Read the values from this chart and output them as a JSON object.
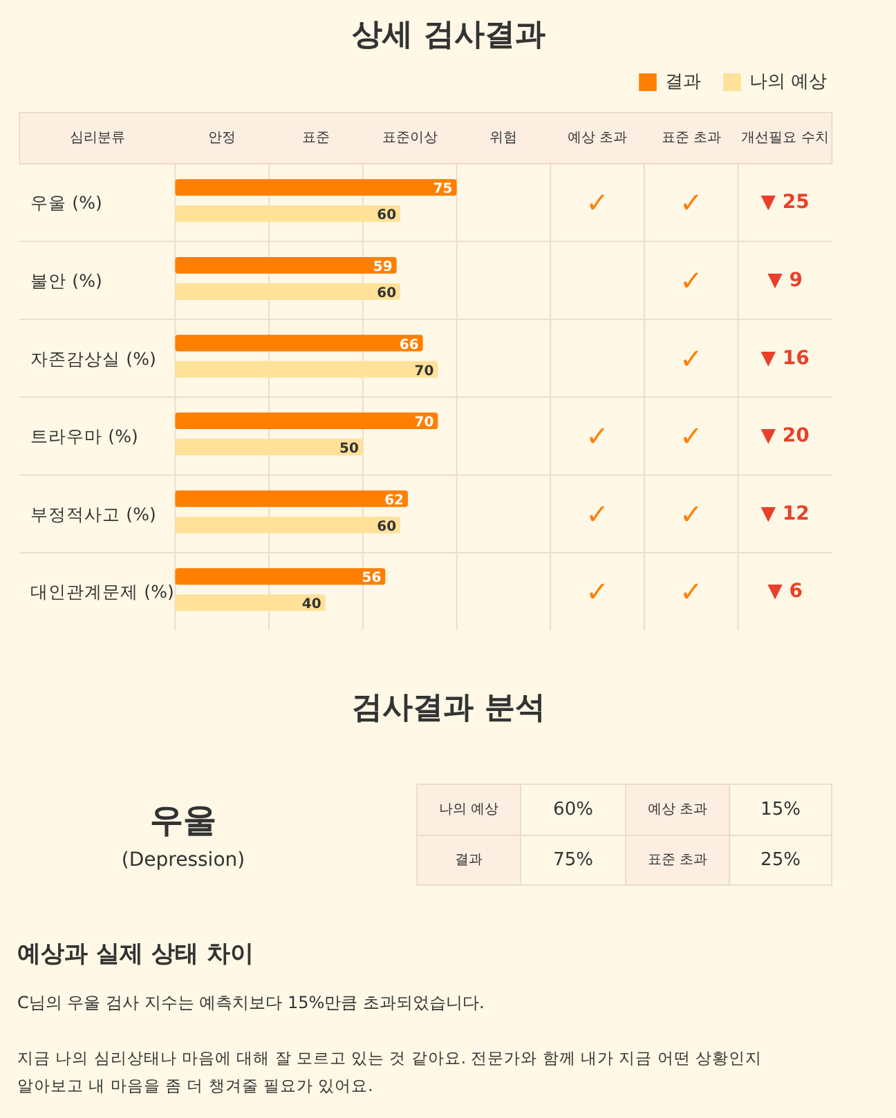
{
  "chart_data": {
    "type": "bar",
    "orientation": "horizontal",
    "title": "상세 검사결과",
    "categories": [
      "우울 (%)",
      "불안 (%)",
      "자존감상실 (%)",
      "트라우마 (%)",
      "부정적사고 (%)",
      "대인관계문제 (%)"
    ],
    "series": [
      {
        "name": "결과",
        "color": "#ff7f00",
        "values": [
          75,
          59,
          66,
          70,
          62,
          56
        ]
      },
      {
        "name": "나의 예상",
        "color": "#ffe199",
        "values": [
          60,
          60,
          70,
          50,
          60,
          40
        ]
      }
    ],
    "xlim": [
      0,
      100
    ],
    "tick_labels": false,
    "data_labels": true,
    "legend": "top right",
    "annotations": [
      "✓",
      "✓",
      "▼ 25",
      "✓",
      "▼ 9",
      "✓",
      "▼ 16",
      "✓",
      "✓",
      "▼ 20",
      "✓",
      "✓",
      "▼ 12",
      "✓",
      "✓",
      "▼ 6",
      "심리분류",
      "안정",
      "표준",
      "표준이상",
      "위험",
      "예상 초과",
      "표준 초과",
      "개선필요 수치",
      "검사결과 분석",
      "우울",
      "(Depression)",
      "나의 예상",
      "60%",
      "예상 초과",
      "15%",
      "결과",
      "75%",
      "표준 초과",
      "25%",
      "예상과 실제 상태 차이",
      "C님의 우울 검사 지수는 예측치보다 15%만큼 초과되었습니다.",
      "지금 나의 심리상태나 마음에 대해 잘 모르고 있는 것 같아요. 전문가와 함께 내가 지금 어떤 상황인지",
      "알아보고 내 마음을 좀 더 챙겨줄 필요가 있어요."
    ]
  }
}
